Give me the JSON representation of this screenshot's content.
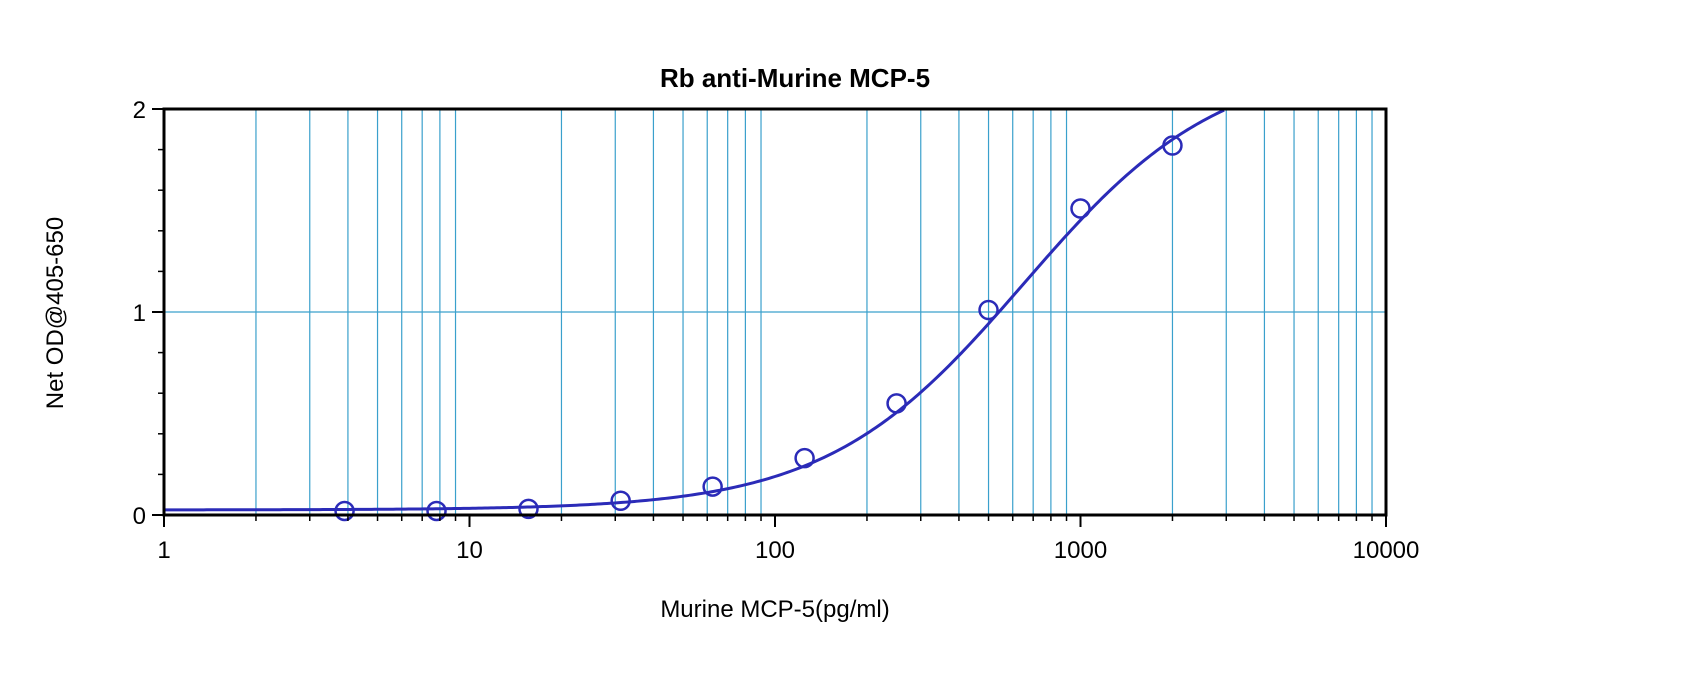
{
  "chart_data": {
    "type": "scatter",
    "title": "Rb anti-Murine MCP-5",
    "xlabel": "Murine MCP-5(pg/ml)",
    "ylabel": "Net OD@405-650",
    "x_scale": "log",
    "xlim": [
      1,
      10000
    ],
    "ylim": [
      0,
      2
    ],
    "x_ticks": [
      1,
      10,
      100,
      1000,
      10000
    ],
    "x_tick_labels": [
      "1",
      "10",
      "100",
      "1000",
      "10000"
    ],
    "y_ticks": [
      0,
      1,
      2
    ],
    "y_tick_labels": [
      "0",
      "1",
      "2"
    ],
    "grid": true,
    "legend": "none",
    "series": [
      {
        "marker": "open-circle",
        "x": [
          3.9,
          7.8,
          15.6,
          31.25,
          62.5,
          125,
          250,
          500,
          1000,
          2000
        ],
        "y": [
          0.02,
          0.02,
          0.03,
          0.07,
          0.14,
          0.28,
          0.55,
          1.01,
          1.51,
          1.82
        ]
      }
    ],
    "fit_curve": {
      "type": "4PL",
      "bottom": 0.025,
      "top": 2.25,
      "ec50": 650,
      "hill": 1.35
    },
    "colors": {
      "data": "#2b2bb8",
      "grid": "#3aa0cc",
      "axis": "#000000"
    }
  }
}
